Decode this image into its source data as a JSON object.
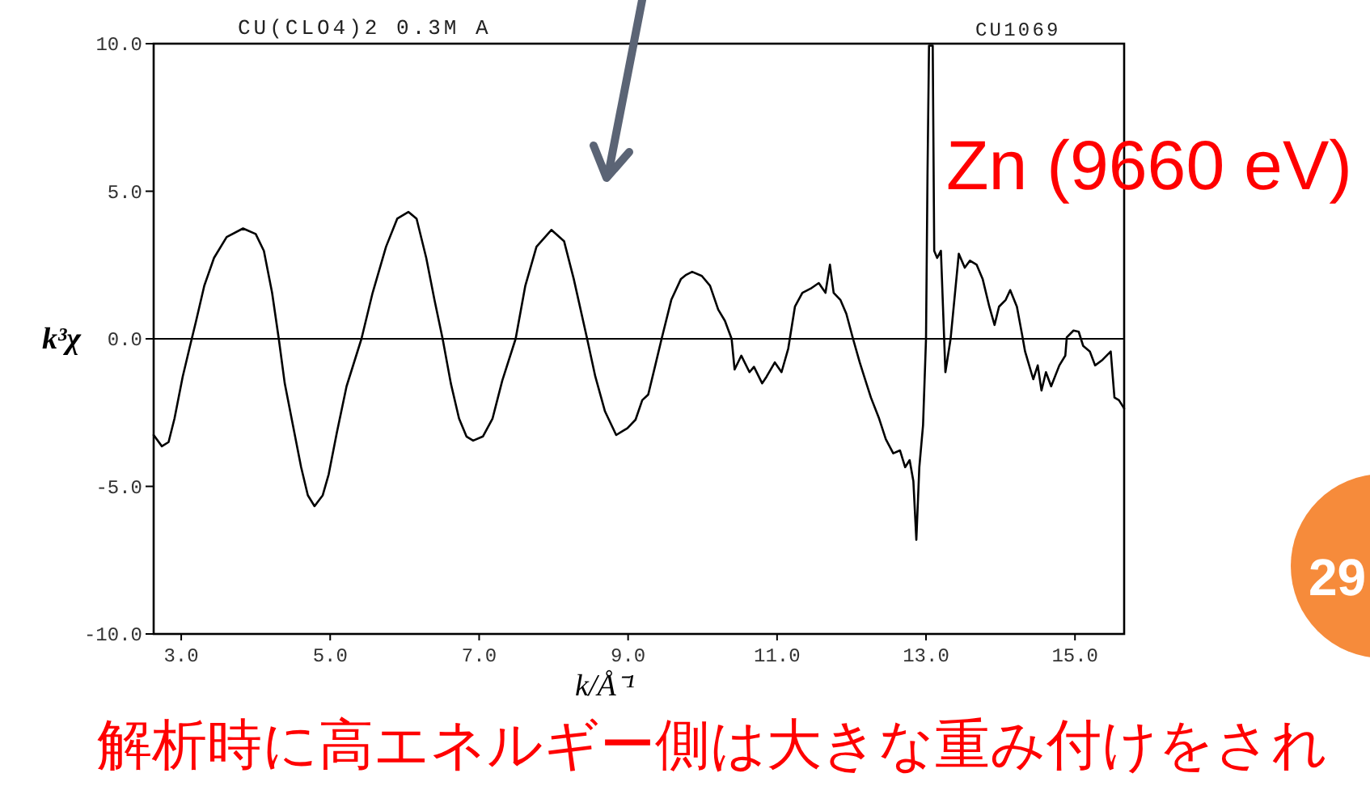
{
  "chart_data": {
    "type": "line",
    "title": "CU(CLO4)2 0.3M A",
    "xlabel": "k/Å⁻¹",
    "ylabel": "k³χ",
    "x": [
      2.63,
      2.74,
      2.83,
      2.91,
      3.02,
      3.11,
      3.2,
      3.31,
      3.44,
      3.61,
      3.83,
      4.0,
      4.11,
      4.22,
      4.31,
      4.39,
      4.5,
      4.61,
      4.7,
      4.79,
      4.9,
      4.98,
      5.09,
      5.22,
      5.42,
      5.57,
      5.75,
      5.9,
      6.05,
      6.16,
      6.29,
      6.4,
      6.51,
      6.62,
      6.73,
      6.83,
      6.92,
      7.05,
      7.18,
      7.31,
      7.49,
      7.62,
      7.77,
      7.97,
      8.14,
      8.27,
      8.45,
      8.56,
      8.69,
      8.84,
      8.93,
      8.99,
      9.1,
      9.19,
      9.27,
      9.36,
      9.45,
      9.58,
      9.71,
      9.78,
      9.86,
      9.99,
      10.1,
      10.21,
      10.3,
      10.39,
      10.43,
      10.52,
      10.63,
      10.69,
      10.8,
      10.86,
      10.97,
      11.06,
      11.15,
      11.24,
      11.34,
      11.45,
      11.56,
      11.65,
      11.71,
      11.76,
      11.85,
      11.93,
      12.02,
      12.11,
      12.17,
      12.26,
      12.37,
      12.46,
      12.56,
      12.65,
      12.72,
      12.78,
      12.83,
      12.87,
      12.91,
      12.96,
      13.0,
      13.02,
      13.04,
      13.09,
      13.11,
      13.15,
      13.2,
      13.26,
      13.33,
      13.44,
      13.52,
      13.59,
      13.68,
      13.76,
      13.85,
      13.92,
      13.98,
      14.07,
      14.13,
      14.22,
      14.29,
      14.33,
      14.44,
      14.5,
      14.55,
      14.61,
      14.68,
      14.79,
      14.87,
      14.89,
      14.98,
      15.05,
      15.11,
      15.2,
      15.27,
      15.37,
      15.48,
      15.53,
      15.59,
      15.66
    ],
    "series": [
      {
        "color": "#000000",
        "values": [
          -3.26,
          -3.64,
          -3.5,
          -2.7,
          -1.28,
          -0.33,
          0.61,
          1.8,
          2.74,
          3.45,
          3.74,
          3.55,
          2.98,
          1.56,
          0.0,
          -1.51,
          -2.93,
          -4.35,
          -5.3,
          -5.67,
          -5.3,
          -4.59,
          -3.17,
          -1.61,
          0.0,
          1.56,
          3.12,
          4.07,
          4.3,
          4.07,
          2.74,
          1.32,
          0.0,
          -1.51,
          -2.7,
          -3.31,
          -3.45,
          -3.31,
          -2.7,
          -1.42,
          0.0,
          1.8,
          3.12,
          3.69,
          3.31,
          2.03,
          0.0,
          -1.28,
          -2.46,
          -3.26,
          -3.12,
          -3.03,
          -2.74,
          -2.08,
          -1.89,
          -0.95,
          0.0,
          1.32,
          2.03,
          2.17,
          2.27,
          2.13,
          1.8,
          0.99,
          0.61,
          0.0,
          -1.04,
          -0.57,
          -1.13,
          -0.95,
          -1.51,
          -1.28,
          -0.8,
          -1.13,
          -0.33,
          1.09,
          1.56,
          1.7,
          1.89,
          1.56,
          2.51,
          1.56,
          1.32,
          0.85,
          0.0,
          -0.8,
          -1.28,
          -1.99,
          -2.7,
          -3.4,
          -3.88,
          -3.78,
          -4.35,
          -4.11,
          -4.82,
          -6.81,
          -4.35,
          -2.93,
          0.0,
          5.58,
          9.93,
          9.93,
          2.98,
          2.74,
          2.98,
          -1.13,
          0.0,
          2.88,
          2.41,
          2.65,
          2.51,
          2.03,
          1.09,
          0.47,
          1.09,
          1.32,
          1.65,
          1.09,
          0.14,
          -0.43,
          -1.37,
          -0.9,
          -1.75,
          -1.13,
          -1.61,
          -0.9,
          -0.57,
          0.05,
          0.28,
          0.24,
          -0.24,
          -0.43,
          -0.9,
          -0.71,
          -0.43,
          -1.99,
          -2.08,
          -2.36
        ]
      }
    ],
    "xlim": [
      2.63,
      15.66
    ],
    "ylim": [
      -10,
      10
    ],
    "xticks": [
      {
        "value": 3,
        "label": "3.0"
      },
      {
        "value": 5,
        "label": "5.0"
      },
      {
        "value": 7,
        "label": "7.0"
      },
      {
        "value": 9,
        "label": "9.0"
      },
      {
        "value": 11,
        "label": "11.0"
      },
      {
        "value": 13,
        "label": "13.0"
      },
      {
        "value": 15,
        "label": "15.0"
      }
    ],
    "yticks": [
      {
        "value": -10,
        "label": "-10.0"
      },
      {
        "value": -5,
        "label": "-5.0"
      },
      {
        "value": 0,
        "label": "0.0"
      },
      {
        "value": 5,
        "label": "5.0"
      },
      {
        "value": 10,
        "label": "10.0"
      }
    ],
    "ref_lines": [
      {
        "axis": "y",
        "value": 0,
        "color": "#000000"
      }
    ],
    "line_style": "solid",
    "annotations": [
      "CU1069",
      "Zn (9660 eV)",
      "解析時に高エネルギー側は大きな重み付けをされ",
      "29"
    ]
  }
}
